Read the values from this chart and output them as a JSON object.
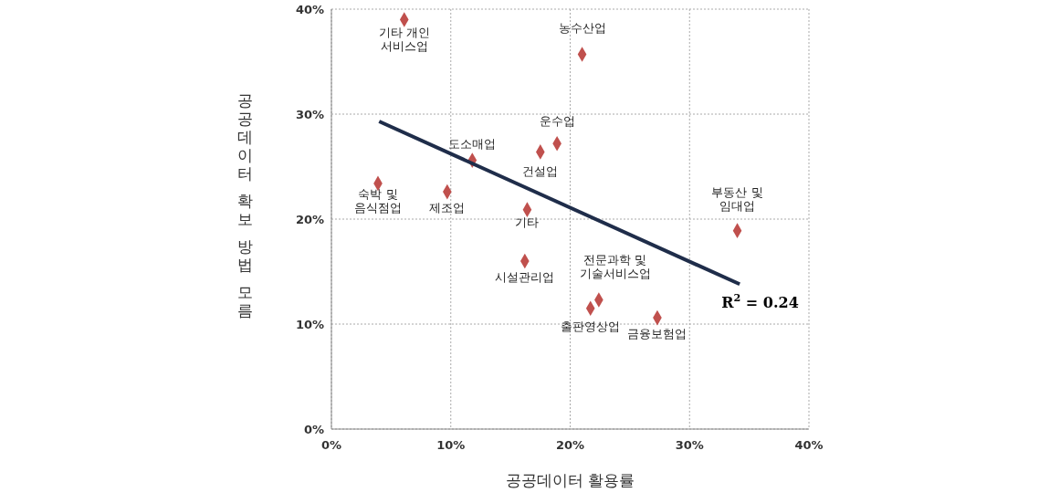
{
  "chart_data": {
    "type": "scatter",
    "xlabel": "공공데이터 활용률",
    "ylabel": "공공데이터 확보 방법 모름",
    "xlim": [
      0,
      40
    ],
    "ylim": [
      0,
      40
    ],
    "xticks": [
      {
        "value": 0,
        "label": "0%"
      },
      {
        "value": 10,
        "label": "10%"
      },
      {
        "value": 20,
        "label": "20%"
      },
      {
        "value": 30,
        "label": "30%"
      },
      {
        "value": 40,
        "label": "40%"
      }
    ],
    "yticks": [
      {
        "value": 0,
        "label": "0%"
      },
      {
        "value": 10,
        "label": "10%"
      },
      {
        "value": 20,
        "label": "20%"
      },
      {
        "value": 30,
        "label": "30%"
      },
      {
        "value": 40,
        "label": "40%"
      }
    ],
    "grid": true,
    "series": [
      {
        "color": "#c0504d",
        "marker": "diamond",
        "x": [
          6.1,
          21.0,
          18.9,
          17.5,
          11.8,
          3.9,
          9.7,
          16.4,
          34.0,
          16.2,
          22.4,
          21.7,
          27.3
        ],
        "values": [
          39.0,
          35.7,
          27.2,
          26.4,
          25.6,
          23.4,
          22.6,
          20.9,
          18.9,
          16.0,
          12.3,
          11.5,
          10.6
        ]
      },
      {
        "type": "line",
        "color": "#1f2d4a",
        "line_style": "solid",
        "marker": "none",
        "x": [
          4.0,
          34.2
        ],
        "values": [
          29.3,
          13.8
        ]
      }
    ],
    "annotations": [
      {
        "text": "기타 개인\n서비스업",
        "x": 6.1,
        "y": 39.0
      },
      {
        "text": "농수산업",
        "x": 21.0,
        "y": 35.7
      },
      {
        "text": "운수업",
        "x": 18.9,
        "y": 27.2
      },
      {
        "text": "건설업",
        "x": 17.5,
        "y": 26.4
      },
      {
        "text": "도소매업",
        "x": 11.8,
        "y": 25.6
      },
      {
        "text": "숙박 및\n음식점업",
        "x": 3.9,
        "y": 23.4
      },
      {
        "text": "제조업",
        "x": 9.7,
        "y": 22.6
      },
      {
        "text": "기타",
        "x": 16.4,
        "y": 20.9
      },
      {
        "text": "부동산 및\n임대업",
        "x": 34.0,
        "y": 18.9
      },
      {
        "text": "시설관리업",
        "x": 16.2,
        "y": 16.0
      },
      {
        "text": "전문과학 및\n기술서비스업",
        "x": 22.4,
        "y": 12.3
      },
      {
        "text": "출판영상업",
        "x": 21.7,
        "y": 11.5
      },
      {
        "text": "금융보험업",
        "x": 27.3,
        "y": 10.6
      },
      "R$^{2}$ = 0.24"
    ]
  }
}
